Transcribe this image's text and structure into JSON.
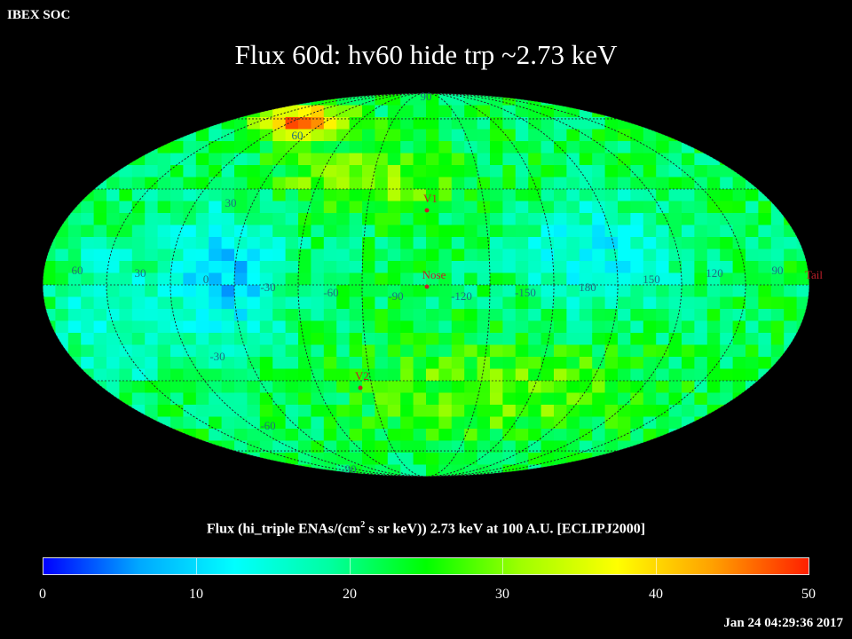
{
  "header": {
    "corner_label": "IBEX SOC",
    "title": "Flux   60d: hv60 hide trp ~2.73 keV"
  },
  "map_labels": {
    "top_pole": "90",
    "bottom_pole": "-90",
    "lat_60": "60",
    "lat_30": "30",
    "lat_neg30": "-30",
    "lat_neg60": "-60",
    "lon_ticks": [
      "60",
      "30",
      "0",
      "-30",
      "-60",
      "-90",
      "-120",
      "-150",
      "180",
      "150",
      "120",
      "90"
    ],
    "markers": {
      "v1": "V1",
      "v2": "V2",
      "nose": "Nose",
      "tail": "Tail"
    }
  },
  "colorbar": {
    "title_pre": "Flux (hi_triple ENAs/(cm",
    "title_sup": "2",
    "title_post": " s sr keV))  2.73 keV at 100 A.U. [ECLIPJ2000]",
    "ticks": [
      "0",
      "10",
      "20",
      "30",
      "40",
      "50"
    ],
    "range": [
      0,
      50
    ],
    "colors": [
      "#0000ff",
      "#00a8ff",
      "#00ffff",
      "#00ffa0",
      "#00ff00",
      "#a0ff00",
      "#ffff00",
      "#ffa000",
      "#ff2000"
    ]
  },
  "footer": {
    "timestamp": "Jan 24 04:29:36 2017"
  },
  "chart_data": {
    "type": "heatmap",
    "projection": "mollweide",
    "frame": "ECLIPJ2000",
    "energy": "2.73 keV",
    "distance": "100 A.U.",
    "value_range": [
      0,
      50
    ],
    "typical_values": {
      "background": 22,
      "low_flux_regions": 9,
      "north_ribbon_peak": 48
    },
    "markers": [
      "V1",
      "V2",
      "Nose",
      "Tail"
    ],
    "grid": true
  }
}
